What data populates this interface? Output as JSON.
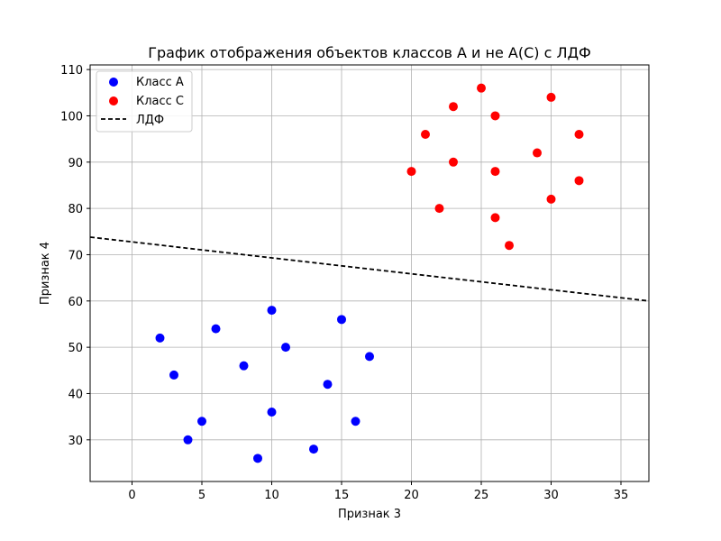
{
  "chart_data": {
    "type": "scatter",
    "title": "График отображения объектов классов A и не A(C) с ЛДФ",
    "xlabel": "Признак 3",
    "ylabel": "Признак 4",
    "xlim": [
      -3,
      37
    ],
    "ylim": [
      21,
      111
    ],
    "xticks": [
      0,
      5,
      10,
      15,
      20,
      25,
      30,
      35
    ],
    "yticks": [
      30,
      40,
      50,
      60,
      70,
      80,
      90,
      100,
      110
    ],
    "grid": true,
    "legend_position": "top-left",
    "series": [
      {
        "name": "Класс A",
        "kind": "scatter",
        "color": "#0000ff",
        "points": [
          [
            2,
            52
          ],
          [
            3,
            44
          ],
          [
            4,
            30
          ],
          [
            5,
            34
          ],
          [
            6,
            54
          ],
          [
            8,
            46
          ],
          [
            9,
            26
          ],
          [
            10,
            58
          ],
          [
            10,
            36
          ],
          [
            11,
            50
          ],
          [
            13,
            28
          ],
          [
            14,
            42
          ],
          [
            15,
            56
          ],
          [
            16,
            34
          ],
          [
            17,
            48
          ]
        ]
      },
      {
        "name": "Класс C",
        "kind": "scatter",
        "color": "#ff0000",
        "points": [
          [
            20,
            88
          ],
          [
            21,
            96
          ],
          [
            22,
            80
          ],
          [
            23,
            102
          ],
          [
            23,
            90
          ],
          [
            25,
            106
          ],
          [
            26,
            100
          ],
          [
            26,
            88
          ],
          [
            26,
            78
          ],
          [
            27,
            72
          ],
          [
            29,
            92
          ],
          [
            30,
            104
          ],
          [
            30,
            82
          ],
          [
            32,
            96
          ],
          [
            32,
            86
          ]
        ]
      },
      {
        "name": "ЛДФ",
        "kind": "line",
        "style": "dashed",
        "color": "#000000",
        "points": [
          [
            -3,
            73.8
          ],
          [
            37,
            60.0
          ]
        ]
      }
    ]
  }
}
